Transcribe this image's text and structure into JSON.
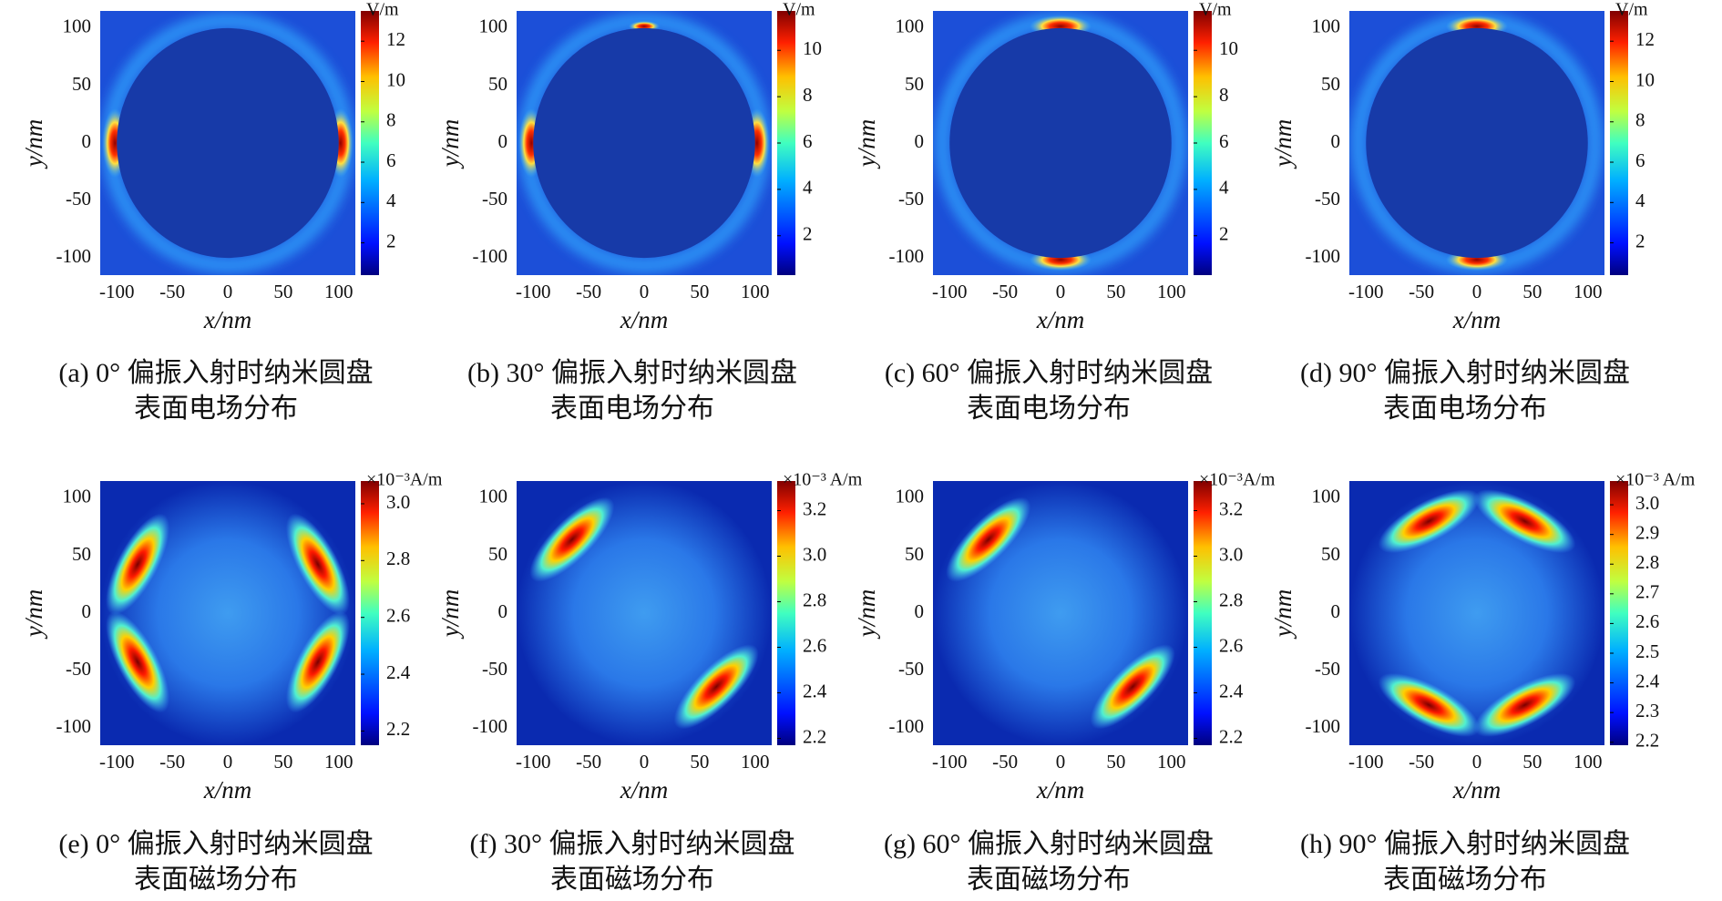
{
  "chart_data": [
    {
      "type": "heatmap",
      "xlabel": "x/nm",
      "ylabel": "y/nm",
      "xlim": [
        -115,
        115
      ],
      "ylim": [
        -115,
        115
      ],
      "xticks": [
        -100,
        -50,
        0,
        50,
        100
      ],
      "yticks": [
        -100,
        -50,
        0,
        50,
        100
      ],
      "colorbar_label": "V/m",
      "colorbar_lim": [
        0.4,
        13.5
      ],
      "colorbar_ticks": [
        2,
        4,
        6,
        8,
        10,
        12
      ],
      "caption": [
        "(a) 0° 偏振入射时纳米圆盘",
        "表面电场分布"
      ]
    },
    {
      "type": "heatmap",
      "xlabel": "x/nm",
      "ylabel": "y/nm",
      "xlim": [
        -115,
        115
      ],
      "ylim": [
        -115,
        115
      ],
      "xticks": [
        -100,
        -50,
        0,
        50,
        100
      ],
      "yticks": [
        -100,
        -50,
        0,
        50,
        100
      ],
      "colorbar_label": "V/m",
      "colorbar_lim": [
        0.3,
        11.7
      ],
      "colorbar_ticks": [
        2,
        4,
        6,
        8,
        10
      ],
      "caption": [
        "(b) 30° 偏振入射时纳米圆盘",
        "表面电场分布"
      ]
    },
    {
      "type": "heatmap",
      "xlabel": "x/nm",
      "ylabel": "y/nm",
      "xlim": [
        -115,
        115
      ],
      "ylim": [
        -115,
        115
      ],
      "xticks": [
        -100,
        -50,
        0,
        50,
        100
      ],
      "yticks": [
        -100,
        -50,
        0,
        50,
        100
      ],
      "colorbar_label": "V/m",
      "colorbar_lim": [
        0.3,
        11.7
      ],
      "colorbar_ticks": [
        2,
        4,
        6,
        8,
        10
      ],
      "caption": [
        "(c) 60° 偏振入射时纳米圆盘",
        "表面电场分布"
      ]
    },
    {
      "type": "heatmap",
      "xlabel": "x/nm",
      "ylabel": "y/nm",
      "xlim": [
        -115,
        115
      ],
      "ylim": [
        -115,
        115
      ],
      "xticks": [
        -100,
        -50,
        0,
        50,
        100
      ],
      "yticks": [
        -100,
        -50,
        0,
        50,
        100
      ],
      "colorbar_label": "V/m",
      "colorbar_lim": [
        0.4,
        13.5
      ],
      "colorbar_ticks": [
        2,
        4,
        6,
        8,
        10,
        12
      ],
      "caption": [
        "(d) 90° 偏振入射时纳米圆盘",
        "表面电场分布"
      ]
    },
    {
      "type": "heatmap",
      "xlabel": "x/nm",
      "ylabel": "y/nm",
      "xlim": [
        -115,
        115
      ],
      "ylim": [
        -115,
        115
      ],
      "xticks": [
        -100,
        -50,
        0,
        50,
        100
      ],
      "yticks": [
        -100,
        -50,
        0,
        50,
        100
      ],
      "colorbar_label": "×10⁻³A/m",
      "colorbar_lim": [
        2.15,
        3.08
      ],
      "colorbar_ticks": [
        2.2,
        2.4,
        2.6,
        2.8,
        {
          "value": 3,
          "label": "3.0"
        }
      ],
      "caption": [
        "(e) 0° 偏振入射时纳米圆盘",
        "表面磁场分布"
      ]
    },
    {
      "type": "heatmap",
      "xlabel": "x/nm",
      "ylabel": "y/nm",
      "xlim": [
        -115,
        115
      ],
      "ylim": [
        -115,
        115
      ],
      "xticks": [
        -100,
        -50,
        0,
        50,
        100
      ],
      "yticks": [
        -100,
        -50,
        0,
        50,
        100
      ],
      "colorbar_label": "×10⁻³ A/m",
      "colorbar_lim": [
        2.17,
        3.33
      ],
      "colorbar_ticks": [
        2.2,
        2.4,
        2.6,
        2.8,
        {
          "value": 3,
          "label": "3.0"
        },
        3.2
      ],
      "caption": [
        "(f) 30° 偏振入射时纳米圆盘",
        "表面磁场分布"
      ]
    },
    {
      "type": "heatmap",
      "xlabel": "x/nm",
      "ylabel": "y/nm",
      "xlim": [
        -115,
        115
      ],
      "ylim": [
        -115,
        115
      ],
      "xticks": [
        -100,
        -50,
        0,
        50,
        100
      ],
      "yticks": [
        -100,
        -50,
        0,
        50,
        100
      ],
      "colorbar_label": "×10⁻³A/m",
      "colorbar_lim": [
        2.17,
        3.33
      ],
      "colorbar_ticks": [
        2.2,
        2.4,
        2.6,
        2.8,
        {
          "value": 3,
          "label": "3.0"
        },
        3.2
      ],
      "caption": [
        "(g) 60° 偏振入射时纳米圆盘",
        "表面磁场分布"
      ]
    },
    {
      "type": "heatmap",
      "xlabel": "x/nm",
      "ylabel": "y/nm",
      "xlim": [
        -115,
        115
      ],
      "ylim": [
        -115,
        115
      ],
      "xticks": [
        -100,
        -50,
        0,
        50,
        100
      ],
      "yticks": [
        -100,
        -50,
        0,
        50,
        100
      ],
      "colorbar_label": "×10⁻³ A/m",
      "colorbar_lim": [
        2.19,
        3.08
      ],
      "colorbar_ticks": [
        2.2,
        2.3,
        2.4,
        2.5,
        2.6,
        2.7,
        2.8,
        2.9,
        {
          "value": 3,
          "label": "3.0"
        }
      ],
      "caption": [
        "(h) 90° 偏振入射时纳米圆盘",
        "表面磁场分布"
      ]
    }
  ]
}
